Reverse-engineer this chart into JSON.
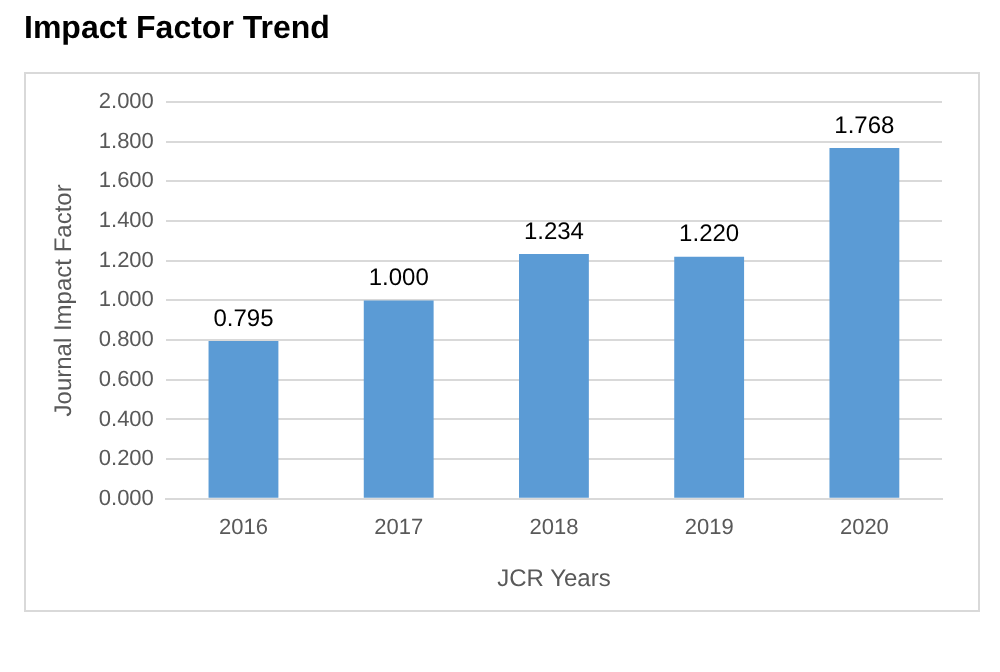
{
  "chart_data": {
    "type": "bar",
    "title": "Impact Factor Trend",
    "xlabel": "JCR Years",
    "ylabel": "Journal Impact Factor",
    "categories": [
      "2016",
      "2017",
      "2018",
      "2019",
      "2020"
    ],
    "values": [
      0.795,
      1.0,
      1.234,
      1.22,
      1.768
    ],
    "value_labels": [
      "0.795",
      "1.000",
      "1.234",
      "1.220",
      "1.768"
    ],
    "color": "#5b9bd5",
    "ylim": [
      0,
      2
    ],
    "yticks": [
      {
        "value": 0,
        "label": "0.000"
      },
      {
        "value": 0.2,
        "label": "0.200"
      },
      {
        "value": 0.4,
        "label": "0.400"
      },
      {
        "value": 0.6,
        "label": "0.600"
      },
      {
        "value": 0.8,
        "label": "0.800"
      },
      {
        "value": 1,
        "label": "1.000"
      },
      {
        "value": 1.2,
        "label": "1.200"
      },
      {
        "value": 1.4,
        "label": "1.400"
      },
      {
        "value": 1.6,
        "label": "1.600"
      },
      {
        "value": 1.8,
        "label": "1.800"
      },
      {
        "value": 2,
        "label": "2.000"
      }
    ],
    "grid": "y",
    "legend": false
  }
}
